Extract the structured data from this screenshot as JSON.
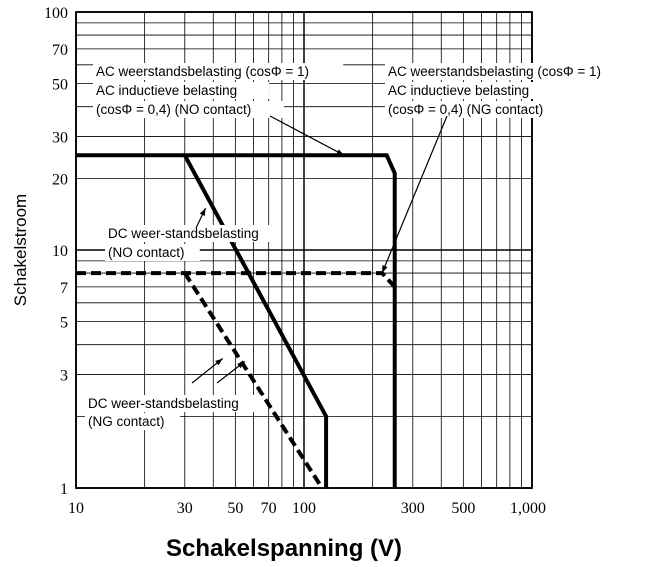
{
  "chart_data": {
    "type": "line",
    "title": "",
    "xlabel": "Schakelspanning (V)",
    "ylabel": "Schakelstroom",
    "x_scale": "log",
    "y_scale": "log",
    "xlim": [
      10,
      1000
    ],
    "ylim": [
      1,
      100
    ],
    "grid": true,
    "x_ticks": [
      10,
      30,
      50,
      70,
      100,
      300,
      500,
      1000
    ],
    "x_tick_labels": [
      "10",
      "30",
      "50",
      "70",
      "100",
      "300",
      "500",
      "1,000"
    ],
    "y_ticks": [
      1,
      3,
      5,
      7,
      10,
      20,
      30,
      50,
      70,
      100
    ],
    "y_tick_labels": [
      "1",
      "3",
      "5",
      "7",
      "10",
      "20",
      "30",
      "50",
      "70",
      "100"
    ],
    "series": [
      {
        "style": "solid-thick",
        "x": [
          10,
          250,
          250
        ],
        "y": [
          25,
          25,
          1
        ],
        "bend": [
          250,
          21
        ],
        "note": "AC weerstandsbelasting (NO contact)"
      },
      {
        "style": "solid-thick",
        "x": [
          30,
          125,
          125
        ],
        "y": [
          25,
          2,
          1
        ]
      },
      {
        "style": "dashed-thick",
        "x": [
          10,
          220,
          250
        ],
        "y": [
          8,
          8,
          7
        ]
      },
      {
        "style": "dashed-thick",
        "x": [
          30,
          120
        ],
        "y": [
          8,
          1
        ]
      }
    ],
    "annotations": [
      {
        "lines": [
          "AC weerstandsbelasting (cosΦ = 1)",
          "AC inductieve belasting",
          "(cosΦ = 0,4) (NO contact)"
        ],
        "pointers": [
          [
            150,
            25
          ]
        ]
      },
      {
        "lines": [
          "AC weerstandsbelasting (cosΦ = 1)",
          "AC inductieve belasting",
          "(cosΦ = 0,4) (NG contact)"
        ],
        "pointers": [
          [
            220,
            8
          ]
        ]
      },
      {
        "lines": [
          "DC weer-standsbelasting",
          "(NO contact)"
        ],
        "pointers": [
          [
            37,
            15
          ]
        ]
      },
      {
        "lines": [
          "DC weer-standsbelasting",
          "(NG contact)"
        ],
        "pointers": [
          [
            44,
            3.5
          ],
          [
            55,
            3.4
          ]
        ]
      }
    ]
  }
}
